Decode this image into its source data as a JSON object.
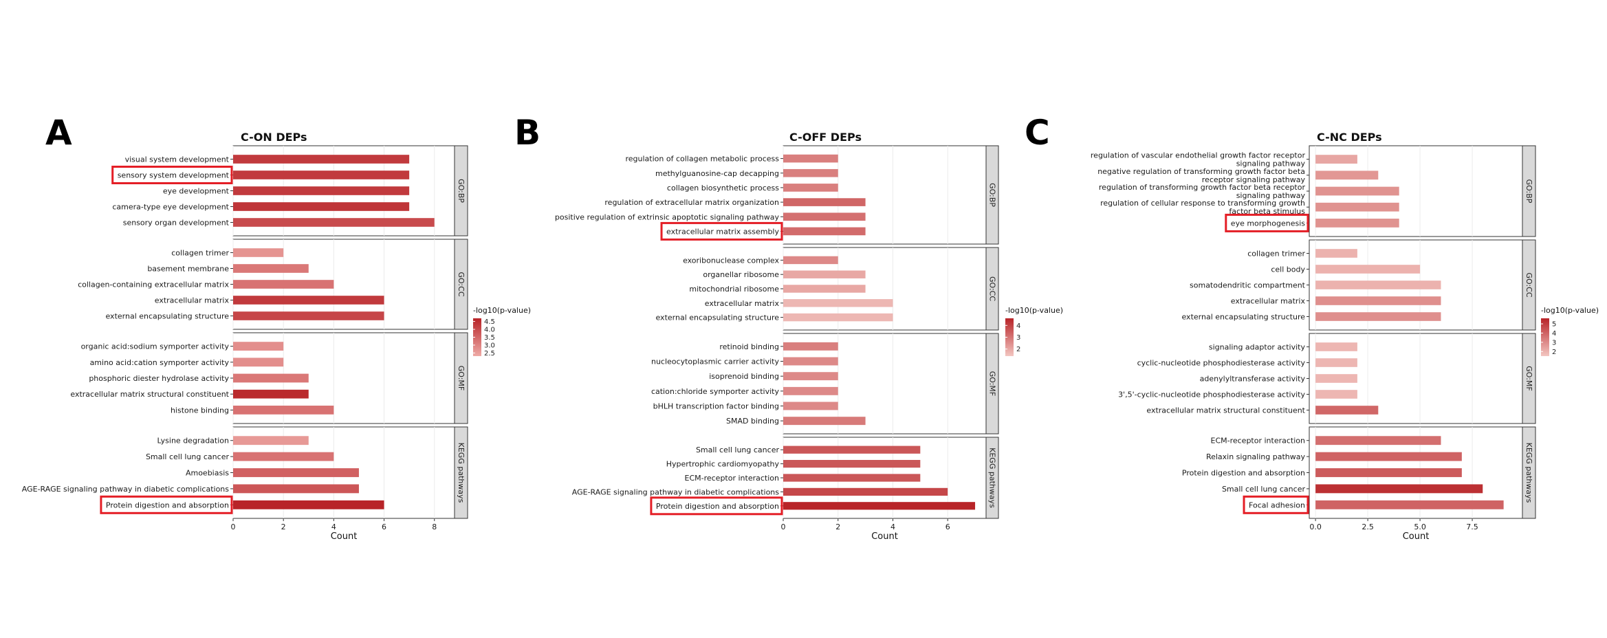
{
  "figure": {
    "panel_letters": [
      "A",
      "B",
      "C"
    ]
  },
  "chart_data": [
    {
      "type": "bar",
      "orientation": "horizontal",
      "panel": "A",
      "title": "C-ON DEPs",
      "xlabel": "Count",
      "xlim": [
        0,
        8.8
      ],
      "xticks": [
        0,
        2,
        4,
        6,
        8
      ],
      "xtick_labels": [
        "0",
        "2",
        "4",
        "6",
        "8"
      ],
      "legend": {
        "title": "-log10(p-value)",
        "ticks": [
          "4.5",
          "4.0",
          "3.5",
          "3.0",
          "2.5"
        ],
        "range": [
          2.3,
          4.7
        ],
        "low_color": "#eeaaa6",
        "high_color": "#b82428"
      },
      "facets": [
        {
          "label": "GO:BP",
          "terms": [
            {
              "name": "visual system development",
              "count": 7,
              "p": 4.3,
              "highlight": false
            },
            {
              "name": "sensory system development",
              "count": 7,
              "p": 4.3,
              "highlight": true
            },
            {
              "name": "eye development",
              "count": 7,
              "p": 4.3,
              "highlight": false
            },
            {
              "name": "camera-type eye development",
              "count": 7,
              "p": 4.4,
              "highlight": false
            },
            {
              "name": "sensory organ development",
              "count": 8,
              "p": 4.0,
              "highlight": false
            }
          ]
        },
        {
          "label": "GO:CC",
          "terms": [
            {
              "name": "collagen trimer",
              "count": 2,
              "p": 2.7,
              "highlight": false
            },
            {
              "name": "basement membrane",
              "count": 3,
              "p": 3.2,
              "highlight": false
            },
            {
              "name": "collagen-containing extracellular matrix",
              "count": 4,
              "p": 3.3,
              "highlight": false
            },
            {
              "name": "extracellular matrix",
              "count": 6,
              "p": 4.3,
              "highlight": false
            },
            {
              "name": "external encapsulating structure",
              "count": 6,
              "p": 4.1,
              "highlight": false
            }
          ]
        },
        {
          "label": "GO:MF",
          "terms": [
            {
              "name": "organic acid:sodium symporter activity",
              "count": 2,
              "p": 2.8,
              "highlight": false
            },
            {
              "name": "amino acid:cation symporter activity",
              "count": 2,
              "p": 2.8,
              "highlight": false
            },
            {
              "name": "phosphoric diester hydrolase activity",
              "count": 3,
              "p": 3.2,
              "highlight": false
            },
            {
              "name": "extracellular matrix structural constituent",
              "count": 3,
              "p": 4.6,
              "highlight": false
            },
            {
              "name": "histone binding",
              "count": 4,
              "p": 3.3,
              "highlight": false
            }
          ]
        },
        {
          "label": "KEGG pathways",
          "terms": [
            {
              "name": "Lysine degradation",
              "count": 3,
              "p": 2.6,
              "highlight": false
            },
            {
              "name": "Small cell lung cancer",
              "count": 4,
              "p": 3.3,
              "highlight": false
            },
            {
              "name": "Amoebiasis",
              "count": 5,
              "p": 3.6,
              "highlight": false
            },
            {
              "name": "AGE-RAGE signaling pathway in diabetic complications",
              "count": 5,
              "p": 3.8,
              "highlight": false
            },
            {
              "name": "Protein digestion and absorption",
              "count": 6,
              "p": 4.7,
              "highlight": true
            }
          ]
        }
      ]
    },
    {
      "type": "bar",
      "orientation": "horizontal",
      "panel": "B",
      "title": "C-OFF DEPs",
      "xlabel": "Count",
      "xlim": [
        0,
        7.4
      ],
      "xticks": [
        0,
        2,
        4,
        6
      ],
      "xtick_labels": [
        "0",
        "2",
        "4",
        "6"
      ],
      "legend": {
        "title": "-log10(p-value)",
        "ticks": [
          "4",
          "3",
          "2"
        ],
        "range": [
          1.4,
          4.6
        ],
        "low_color": "#f3c6c1",
        "high_color": "#b82428"
      },
      "facets": [
        {
          "label": "GO:BP",
          "terms": [
            {
              "name": "regulation of collagen metabolic process",
              "count": 2,
              "p": 2.8,
              "highlight": false
            },
            {
              "name": "methylguanosine-cap decapping",
              "count": 2,
              "p": 2.8,
              "highlight": false
            },
            {
              "name": "collagen biosynthetic process",
              "count": 2,
              "p": 2.8,
              "highlight": false
            },
            {
              "name": "regulation of extracellular matrix organization",
              "count": 3,
              "p": 3.3,
              "highlight": false
            },
            {
              "name": "positive regulation of extrinsic apoptotic signaling pathway",
              "count": 3,
              "p": 3.1,
              "highlight": false
            },
            {
              "name": "extracellular matrix assembly",
              "count": 3,
              "p": 3.2,
              "highlight": true
            }
          ]
        },
        {
          "label": "GO:CC",
          "terms": [
            {
              "name": "exoribonuclease complex",
              "count": 2,
              "p": 2.6,
              "highlight": false
            },
            {
              "name": "organellar ribosome",
              "count": 3,
              "p": 2.0,
              "highlight": false
            },
            {
              "name": "mitochondrial ribosome",
              "count": 3,
              "p": 2.0,
              "highlight": false
            },
            {
              "name": "extracellular matrix",
              "count": 4,
              "p": 1.7,
              "highlight": false
            },
            {
              "name": "external encapsulating structure",
              "count": 4,
              "p": 1.7,
              "highlight": false
            }
          ]
        },
        {
          "label": "GO:MF",
          "terms": [
            {
              "name": "retinoid binding",
              "count": 2,
              "p": 2.8,
              "highlight": false
            },
            {
              "name": "nucleocytoplasmic carrier activity",
              "count": 2,
              "p": 2.6,
              "highlight": false
            },
            {
              "name": "isoprenoid binding",
              "count": 2,
              "p": 2.6,
              "highlight": false
            },
            {
              "name": "cation:chloride symporter activity",
              "count": 2,
              "p": 2.6,
              "highlight": false
            },
            {
              "name": "bHLH transcription factor binding",
              "count": 2,
              "p": 2.6,
              "highlight": false
            },
            {
              "name": "SMAD binding",
              "count": 3,
              "p": 2.9,
              "highlight": false
            }
          ]
        },
        {
          "label": "KEGG pathways",
          "terms": [
            {
              "name": "Small cell lung cancer",
              "count": 5,
              "p": 3.6,
              "highlight": false
            },
            {
              "name": "Hypertrophic cardiomyopathy",
              "count": 5,
              "p": 3.6,
              "highlight": false
            },
            {
              "name": "ECM-receptor interaction",
              "count": 5,
              "p": 3.6,
              "highlight": false
            },
            {
              "name": "AGE-RAGE signaling pathway in diabetic complications",
              "count": 6,
              "p": 3.9,
              "highlight": false
            },
            {
              "name": "Protein digestion and absorption",
              "count": 7,
              "p": 4.6,
              "highlight": true
            }
          ]
        }
      ]
    },
    {
      "type": "bar",
      "orientation": "horizontal",
      "panel": "C",
      "title": "C-NC DEPs",
      "xlabel": "Count",
      "xlim": [
        -0.3,
        9.9
      ],
      "xticks": [
        0,
        2.5,
        5,
        7.5
      ],
      "xtick_labels": [
        "0.0",
        "2.5",
        "5.0",
        "7.5"
      ],
      "legend": {
        "title": "-log10(p-value)",
        "ticks": [
          "5",
          "4",
          "3",
          "2"
        ],
        "range": [
          1.5,
          5.6
        ],
        "low_color": "#f3c6c1",
        "high_color": "#b82428"
      },
      "facets": [
        {
          "label": "GO:BP",
          "terms": [
            {
              "name": "regulation of vascular endothelial growth factor receptor signaling pathway",
              "lines": [
                "regulation of vascular endothelial growth factor receptor",
                "signaling pathway"
              ],
              "count": 2,
              "p": 2.3,
              "highlight": false
            },
            {
              "name": "negative regulation of transforming growth factor beta receptor signaling pathway",
              "lines": [
                "negative regulation of transforming growth factor beta",
                "receptor signaling pathway"
              ],
              "count": 3,
              "p": 2.7,
              "highlight": false
            },
            {
              "name": "regulation of transforming growth factor beta receptor signaling pathway",
              "lines": [
                "regulation of transforming growth factor beta receptor",
                "signaling pathway"
              ],
              "count": 4,
              "p": 2.8,
              "highlight": false
            },
            {
              "name": "regulation of cellular response to transforming growth factor beta stimulus",
              "lines": [
                "regulation of cellular response to transforming growth",
                "factor beta stimulus"
              ],
              "count": 4,
              "p": 2.8,
              "highlight": false
            },
            {
              "name": "eye morphogenesis",
              "count": 4,
              "p": 2.8,
              "highlight": true
            }
          ]
        },
        {
          "label": "GO:CC",
          "terms": [
            {
              "name": "collagen trimer",
              "count": 2,
              "p": 2.0,
              "highlight": false
            },
            {
              "name": "cell body",
              "count": 5,
              "p": 2.0,
              "highlight": false
            },
            {
              "name": "somatodendritic compartment",
              "count": 6,
              "p": 2.0,
              "highlight": false
            },
            {
              "name": "extracellular matrix",
              "count": 6,
              "p": 2.9,
              "highlight": false
            },
            {
              "name": "external encapsulating structure",
              "count": 6,
              "p": 2.9,
              "highlight": false
            }
          ]
        },
        {
          "label": "GO:MF",
          "terms": [
            {
              "name": "signaling adaptor activity",
              "count": 2,
              "p": 1.9,
              "highlight": false
            },
            {
              "name": "cyclic-nucleotide phosphodiesterase activity",
              "count": 2,
              "p": 1.9,
              "highlight": false
            },
            {
              "name": "adenylyltransferase activity",
              "count": 2,
              "p": 1.9,
              "highlight": false
            },
            {
              "name": "3',5'-cyclic-nucleotide phosphodiesterase activity",
              "count": 2,
              "p": 1.9,
              "highlight": false
            },
            {
              "name": "extracellular matrix structural constituent",
              "count": 3,
              "p": 3.9,
              "highlight": false
            }
          ]
        },
        {
          "label": "KEGG pathways",
          "terms": [
            {
              "name": "ECM-receptor interaction",
              "count": 6,
              "p": 3.7,
              "highlight": false
            },
            {
              "name": "Relaxin signaling pathway",
              "count": 7,
              "p": 4.0,
              "highlight": false
            },
            {
              "name": "Protein digestion and absorption",
              "count": 7,
              "p": 4.2,
              "highlight": false
            },
            {
              "name": "Small cell lung cancer",
              "count": 8,
              "p": 5.3,
              "highlight": false
            },
            {
              "name": "Focal adhesion",
              "count": 9,
              "p": 4.0,
              "highlight": true
            }
          ]
        }
      ]
    }
  ]
}
